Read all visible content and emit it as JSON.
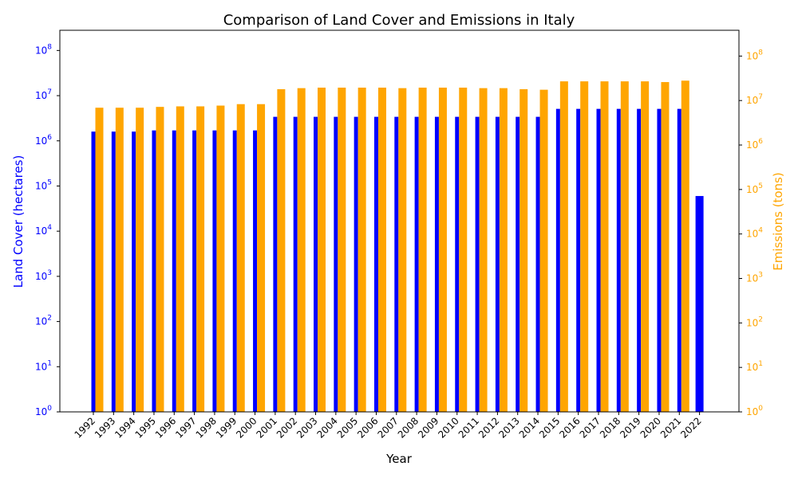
{
  "chart_data": {
    "type": "bar",
    "title": "Comparison of Land Cover and Emissions in Italy",
    "xlabel": "Year",
    "ylabel_left": "Land Cover (hectares)",
    "ylabel_right": "Emissions (tons)",
    "y_scale": "log",
    "ylim_left": [
      1,
      280000000
    ],
    "ylim_right": [
      1,
      380000000
    ],
    "left_axis_color": "#0000ff",
    "right_axis_color": "#ffa500",
    "categories": [
      "1992",
      "1993",
      "1994",
      "1995",
      "1996",
      "1997",
      "1998",
      "1999",
      "2000",
      "2001",
      "2002",
      "2003",
      "2004",
      "2005",
      "2006",
      "2007",
      "2008",
      "2009",
      "2010",
      "2011",
      "2012",
      "2013",
      "2014",
      "2015",
      "2016",
      "2017",
      "2018",
      "2019",
      "2020",
      "2021",
      "2022"
    ],
    "series": [
      {
        "axis": "left",
        "color": "#0000ff",
        "values": [
          1600000,
          1600000,
          1600000,
          1700000,
          1700000,
          1700000,
          1700000,
          1700000,
          1700000,
          3400000,
          3400000,
          3400000,
          3400000,
          3400000,
          3400000,
          3400000,
          3400000,
          3400000,
          3400000,
          3400000,
          3400000,
          3400000,
          3400000,
          5100000,
          5100000,
          5100000,
          5100000,
          5100000,
          5100000,
          5100000,
          60000
        ]
      },
      {
        "axis": "right",
        "color": "#ffa500",
        "values": [
          6900000,
          6900000,
          6900000,
          7200000,
          7400000,
          7400000,
          7700000,
          8300000,
          8300000,
          18000000,
          19000000,
          19500000,
          19500000,
          19500000,
          19500000,
          19000000,
          19500000,
          19500000,
          19500000,
          19000000,
          19000000,
          18000000,
          17500000,
          27000000,
          27000000,
          27000000,
          27000000,
          27000000,
          26000000,
          28000000,
          null
        ]
      }
    ]
  }
}
